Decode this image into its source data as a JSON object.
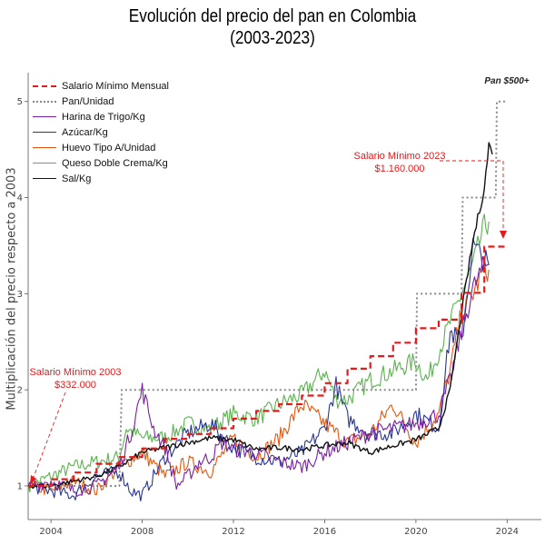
{
  "chart_data": {
    "type": "line",
    "title": "Evolución del precio del pan en Colombia",
    "subtitle": "(2003-2023)",
    "xlabel": "",
    "ylabel": "Multiplicación del precio respecto a 2003",
    "xlim": [
      2003,
      2025.5
    ],
    "ylim": [
      0.65,
      5.3
    ],
    "x_ticks": [
      2004,
      2008,
      2012,
      2016,
      2020,
      2024
    ],
    "y_ticks": [
      1,
      2,
      3,
      4,
      5
    ],
    "grid": false,
    "legend_position": "top-left",
    "annotations": [
      {
        "text": "Salario Mínimo 2003",
        "value": "$332.000",
        "color": "#e41a1c"
      },
      {
        "text": "Salario Mínimo 2023",
        "value": "$1.160.000",
        "color": "#e41a1c"
      },
      {
        "text": "Pan $500+",
        "color": "#222222"
      }
    ],
    "series": [
      {
        "name": "Salario Mínimo Mensual",
        "color": "#e41a1c",
        "style": "dashed",
        "points": [
          [
            2003,
            1.0
          ],
          [
            2004,
            1.07
          ],
          [
            2005,
            1.14
          ],
          [
            2006,
            1.23
          ],
          [
            2007,
            1.3
          ],
          [
            2008,
            1.39
          ],
          [
            2009,
            1.49
          ],
          [
            2010,
            1.54
          ],
          [
            2011,
            1.6
          ],
          [
            2012,
            1.7
          ],
          [
            2013,
            1.78
          ],
          [
            2014,
            1.85
          ],
          [
            2015,
            1.94
          ],
          [
            2016,
            2.07
          ],
          [
            2017,
            2.22
          ],
          [
            2018,
            2.35
          ],
          [
            2019,
            2.49
          ],
          [
            2020,
            2.64
          ],
          [
            2021,
            2.73
          ],
          [
            2022,
            3.01
          ],
          [
            2023,
            3.49
          ],
          [
            2024,
            3.49
          ]
        ]
      },
      {
        "name": "Pan/Unidad",
        "color": "#888888",
        "style": "dotted",
        "points": [
          [
            2003,
            1.0
          ],
          [
            2007,
            1.0
          ],
          [
            2007.1,
            2.0
          ],
          [
            2020,
            2.0
          ],
          [
            2020.05,
            3.0
          ],
          [
            2022,
            3.0
          ],
          [
            2022.05,
            4.0
          ],
          [
            2023.5,
            4.0
          ],
          [
            2023.55,
            5.0
          ],
          [
            2024,
            5.0
          ]
        ]
      },
      {
        "name": "Harina de Trigo/Kg",
        "color": "#7b1fa2",
        "style": "solid",
        "points": [
          [
            2003,
            1.0
          ],
          [
            2004,
            1.05
          ],
          [
            2005,
            0.95
          ],
          [
            2006,
            1.0
          ],
          [
            2007,
            1.2
          ],
          [
            2007.5,
            1.55
          ],
          [
            2008,
            2.0
          ],
          [
            2008.5,
            1.6
          ],
          [
            2009,
            1.4
          ],
          [
            2009.5,
            1.0
          ],
          [
            2010,
            1.1
          ],
          [
            2010.5,
            1.25
          ],
          [
            2011,
            1.3
          ],
          [
            2011.5,
            1.45
          ],
          [
            2012,
            1.38
          ],
          [
            2013,
            1.35
          ],
          [
            2014,
            1.25
          ],
          [
            2015,
            1.2
          ],
          [
            2016,
            1.35
          ],
          [
            2017,
            1.45
          ],
          [
            2018,
            1.55
          ],
          [
            2019,
            1.6
          ],
          [
            2020,
            1.65
          ],
          [
            2021,
            1.75
          ],
          [
            2021.5,
            2.1
          ],
          [
            2022,
            2.6
          ],
          [
            2022.5,
            3.05
          ],
          [
            2023,
            3.3
          ],
          [
            2023.2,
            3.3
          ]
        ]
      },
      {
        "name": "Azúcar/Kg",
        "color": "#283593",
        "style": "solid",
        "points": [
          [
            2003,
            1.0
          ],
          [
            2004,
            0.95
          ],
          [
            2005,
            0.9
          ],
          [
            2006,
            1.1
          ],
          [
            2007,
            1.15
          ],
          [
            2007.5,
            0.95
          ],
          [
            2008,
            0.9
          ],
          [
            2009,
            1.3
          ],
          [
            2010,
            1.55
          ],
          [
            2011,
            1.65
          ],
          [
            2012,
            1.4
          ],
          [
            2013,
            1.3
          ],
          [
            2014,
            1.25
          ],
          [
            2015,
            1.35
          ],
          [
            2016,
            1.6
          ],
          [
            2016.5,
            2.05
          ],
          [
            2017,
            1.7
          ],
          [
            2018,
            1.55
          ],
          [
            2019,
            1.55
          ],
          [
            2020,
            1.75
          ],
          [
            2021,
            1.6
          ],
          [
            2021.5,
            2.6
          ],
          [
            2022,
            2.5
          ],
          [
            2022.5,
            3.5
          ],
          [
            2023,
            3.35
          ],
          [
            2023.2,
            3.3
          ]
        ]
      },
      {
        "name": "Huevo Tipo A/Unidad",
        "color": "#e6550d",
        "style": "solid",
        "points": [
          [
            2003,
            1.0
          ],
          [
            2004,
            0.95
          ],
          [
            2005,
            1.05
          ],
          [
            2006,
            0.95
          ],
          [
            2007,
            1.2
          ],
          [
            2008,
            1.35
          ],
          [
            2009,
            1.1
          ],
          [
            2010,
            1.25
          ],
          [
            2011,
            1.15
          ],
          [
            2012,
            1.5
          ],
          [
            2013,
            1.3
          ],
          [
            2014,
            1.5
          ],
          [
            2015,
            1.85
          ],
          [
            2016,
            1.65
          ],
          [
            2017,
            1.45
          ],
          [
            2018,
            1.55
          ],
          [
            2019,
            1.85
          ],
          [
            2020,
            1.45
          ],
          [
            2021,
            1.75
          ],
          [
            2021.5,
            2.2
          ],
          [
            2022,
            2.8
          ],
          [
            2022.5,
            3.0
          ],
          [
            2023,
            3.25
          ],
          [
            2023.2,
            3.25
          ]
        ]
      },
      {
        "name": "Queso Doble Crema/Kg",
        "color": "#5ab34e",
        "style": "solid",
        "points": [
          [
            2003,
            1.0
          ],
          [
            2004,
            1.1
          ],
          [
            2005,
            1.2
          ],
          [
            2006,
            1.25
          ],
          [
            2007,
            1.3
          ],
          [
            2007.3,
            1.6
          ],
          [
            2008,
            1.5
          ],
          [
            2009,
            1.5
          ],
          [
            2010,
            1.65
          ],
          [
            2011,
            1.6
          ],
          [
            2012,
            1.75
          ],
          [
            2013,
            1.7
          ],
          [
            2014,
            1.85
          ],
          [
            2015,
            1.95
          ],
          [
            2016,
            2.2
          ],
          [
            2016.5,
            1.9
          ],
          [
            2017,
            1.9
          ],
          [
            2018,
            2.1
          ],
          [
            2019,
            2.2
          ],
          [
            2020,
            2.3
          ],
          [
            2020.5,
            2.1
          ],
          [
            2021,
            2.4
          ],
          [
            2022,
            3.0
          ],
          [
            2022.5,
            3.3
          ],
          [
            2023,
            3.7
          ],
          [
            2023.2,
            3.75
          ]
        ]
      },
      {
        "name": "Sal/Kg",
        "color": "#111111",
        "style": "solid",
        "points": [
          [
            2003,
            1.0
          ],
          [
            2004,
            1.0
          ],
          [
            2005,
            1.05
          ],
          [
            2006,
            1.1
          ],
          [
            2007,
            1.2
          ],
          [
            2008,
            1.35
          ],
          [
            2009,
            1.4
          ],
          [
            2010,
            1.45
          ],
          [
            2011,
            1.5
          ],
          [
            2012,
            1.48
          ],
          [
            2013,
            1.38
          ],
          [
            2014,
            1.4
          ],
          [
            2015,
            1.38
          ],
          [
            2016,
            1.42
          ],
          [
            2017,
            1.45
          ],
          [
            2018,
            1.35
          ],
          [
            2019,
            1.42
          ],
          [
            2020,
            1.48
          ],
          [
            2021,
            1.6
          ],
          [
            2021.5,
            2.0
          ],
          [
            2022,
            2.8
          ],
          [
            2022.5,
            3.55
          ],
          [
            2023,
            4.1
          ],
          [
            2023.2,
            4.55
          ],
          [
            2023.35,
            4.45
          ]
        ]
      }
    ]
  }
}
